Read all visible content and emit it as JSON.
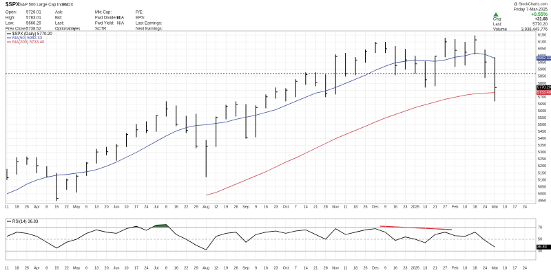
{
  "header": {
    "symbol": "$SPX",
    "name": "S&P 500 Large Cap Index",
    "exchange": "INDX",
    "columns": [
      [
        [
          "Open:",
          "5726.01"
        ],
        [
          "High:",
          "5783.01"
        ],
        [
          "Low:",
          "5666.29"
        ],
        [
          "Prev Close:",
          "5738.52"
        ]
      ],
      [
        [
          "Ask:"
        ],
        [
          "Bid:"
        ],
        [
          "Last:"
        ],
        [
          "Optionable:",
          "yes"
        ]
      ],
      [
        [
          "Mkt Cap:"
        ],
        [
          "Fwd Dividend:",
          "N/A"
        ],
        [
          "Fwd Yield:",
          "N/A"
        ],
        [
          "SCTR:"
        ]
      ],
      [
        [
          "P/E:"
        ],
        [
          "EPS:"
        ],
        [
          "Last Earnings:"
        ],
        [
          "Next Earnings:"
        ]
      ]
    ],
    "credit": "@ StockCharts.com",
    "date": "Friday 7-Mar-2025",
    "pct": "+0.55%",
    "stats": [
      [
        "Chg:",
        "+31.68"
      ],
      [
        "Last:",
        "5770.20"
      ],
      [
        "Volume",
        "3,938,443,776"
      ]
    ]
  },
  "chart_data": [
    {
      "type": "ohlc",
      "categories": [
        "11",
        "18",
        "25",
        "Apr",
        "8",
        "15",
        "22",
        "May",
        "6",
        "13",
        "20",
        "Jun",
        "10",
        "17",
        "24",
        "Jul",
        "8",
        "16",
        "22",
        "29",
        "Aug",
        "12",
        "19",
        "26",
        "Sep",
        "9",
        "16",
        "23",
        "Oct",
        "7",
        "14",
        "21",
        "28",
        "Nov",
        "11",
        "18",
        "25",
        "Dec",
        "9",
        "16",
        "23",
        "2025",
        "13",
        "21",
        "27",
        "Feb",
        "10",
        "18",
        "24",
        "Mar",
        "10",
        "17",
        "24"
      ],
      "series": [
        {
          "name": "$SPX (Daily)",
          "color": "#000000",
          "label": "5770.20",
          "values": [
            5117,
            5234,
            5254,
            5204,
            5123,
            4967,
            5100,
            5128,
            5223,
            5303,
            5305,
            5347,
            5431,
            5464,
            5460,
            5567,
            5615,
            5505,
            5459,
            5346,
            5344,
            5554,
            5634,
            5648,
            5408,
            5626,
            5703,
            5738,
            5751,
            5815,
            5864,
            5808,
            5728,
            5995,
            5870,
            5969,
            6032,
            6090,
            6051,
            5930,
            5970,
            5942,
            5827,
            5997,
            6101,
            6040,
            6026,
            6115,
            5955,
            5770.2,
            null,
            null,
            null
          ],
          "high": [
            5180,
            5265,
            5270,
            5265,
            5200,
            5150,
            5110,
            5140,
            5230,
            5325,
            5340,
            5360,
            5440,
            5505,
            5525,
            5570,
            5670,
            5640,
            5565,
            5580,
            5390,
            5560,
            5645,
            5670,
            5650,
            5640,
            5720,
            5770,
            5765,
            5830,
            5880,
            5880,
            5865,
            6010,
            6020,
            5990,
            6045,
            6100,
            6100,
            6070,
            6050,
            6000,
            5960,
            6000,
            6130,
            6120,
            6100,
            6147,
            6045,
            5990,
            null,
            null,
            null
          ],
          "low": [
            5100,
            5140,
            5210,
            5150,
            5120,
            4950,
            5030,
            5010,
            5130,
            5220,
            5280,
            5240,
            5340,
            5410,
            5440,
            5450,
            5560,
            5490,
            5440,
            5330,
            5120,
            5340,
            5540,
            5560,
            5400,
            5410,
            5620,
            5690,
            5670,
            5700,
            5790,
            5780,
            5700,
            5720,
            5850,
            5860,
            5950,
            6020,
            6020,
            5860,
            5900,
            5870,
            5770,
            5780,
            5990,
            5920,
            5930,
            6010,
            5840,
            5670,
            null,
            null,
            null
          ]
        },
        {
          "name": "MA(50)",
          "type": "line",
          "color": "#3d4f9f",
          "label": "5982.33",
          "values": [
            5000,
            5030,
            5070,
            5100,
            5120,
            5135,
            5140,
            5150,
            5160,
            5175,
            5200,
            5230,
            5265,
            5300,
            5340,
            5380,
            5420,
            5455,
            5480,
            5495,
            5500,
            5510,
            5520,
            5540,
            5555,
            5570,
            5590,
            5610,
            5640,
            5670,
            5700,
            5730,
            5745,
            5770,
            5800,
            5830,
            5860,
            5895,
            5925,
            5950,
            5960,
            5970,
            5965,
            5960,
            5970,
            5990,
            6000,
            6020,
            6010,
            5982.33,
            null,
            null,
            null
          ]
        },
        {
          "name": "MA(200)",
          "type": "line",
          "color": "#d0414a",
          "label": "5733.40",
          "values": [
            null,
            null,
            null,
            null,
            null,
            null,
            null,
            null,
            null,
            null,
            null,
            null,
            null,
            null,
            null,
            null,
            null,
            null,
            null,
            null,
            4990,
            5010,
            5040,
            5070,
            5100,
            5130,
            5160,
            5195,
            5230,
            5260,
            5295,
            5330,
            5365,
            5400,
            5430,
            5460,
            5490,
            5520,
            5550,
            5575,
            5600,
            5625,
            5645,
            5665,
            5685,
            5700,
            5715,
            5725,
            5730,
            5733.4,
            null,
            null,
            null
          ]
        }
      ],
      "hline": {
        "value": 5870,
        "color": "#9b30c8"
      },
      "ylim": [
        4930,
        6180
      ],
      "yticks": [
        4950,
        5000,
        5050,
        5100,
        5150,
        5200,
        5250,
        5300,
        5350,
        5400,
        5450,
        5500,
        5550,
        5600,
        5650,
        5700,
        5750,
        5800,
        5850,
        5900,
        5950,
        6000,
        6050,
        6100,
        6150
      ],
      "grid": true
    },
    {
      "type": "line",
      "categories": [
        "11",
        "18",
        "25",
        "Apr",
        "8",
        "15",
        "22",
        "May",
        "6",
        "13",
        "20",
        "Jun",
        "10",
        "17",
        "24",
        "Jul",
        "8",
        "16",
        "22",
        "29",
        "Aug",
        "12",
        "19",
        "26",
        "Sep",
        "9",
        "16",
        "23",
        "Oct",
        "7",
        "14",
        "21",
        "28",
        "Nov",
        "11",
        "18",
        "25",
        "Dec",
        "9",
        "16",
        "23",
        "2025",
        "13",
        "21",
        "27",
        "Feb",
        "10",
        "18",
        "24",
        "Mar",
        "10",
        "17",
        "24"
      ],
      "series": [
        {
          "name": "RSI(14)",
          "color": "#000000",
          "values": [
            55,
            62,
            60,
            55,
            45,
            35,
            45,
            50,
            60,
            66,
            62,
            60,
            68,
            72,
            65,
            74,
            75,
            58,
            50,
            40,
            32,
            55,
            60,
            62,
            45,
            58,
            62,
            64,
            60,
            64,
            66,
            58,
            50,
            68,
            58,
            62,
            66,
            68,
            62,
            48,
            54,
            50,
            44,
            58,
            62,
            56,
            55,
            62,
            48,
            36.83,
            null,
            null,
            null
          ]
        }
      ],
      "fill_above": 70,
      "fill_color": "#3f7d3f",
      "ylim": [
        15,
        85
      ],
      "yticks": [
        30,
        50,
        70
      ],
      "grid": true
    }
  ]
}
